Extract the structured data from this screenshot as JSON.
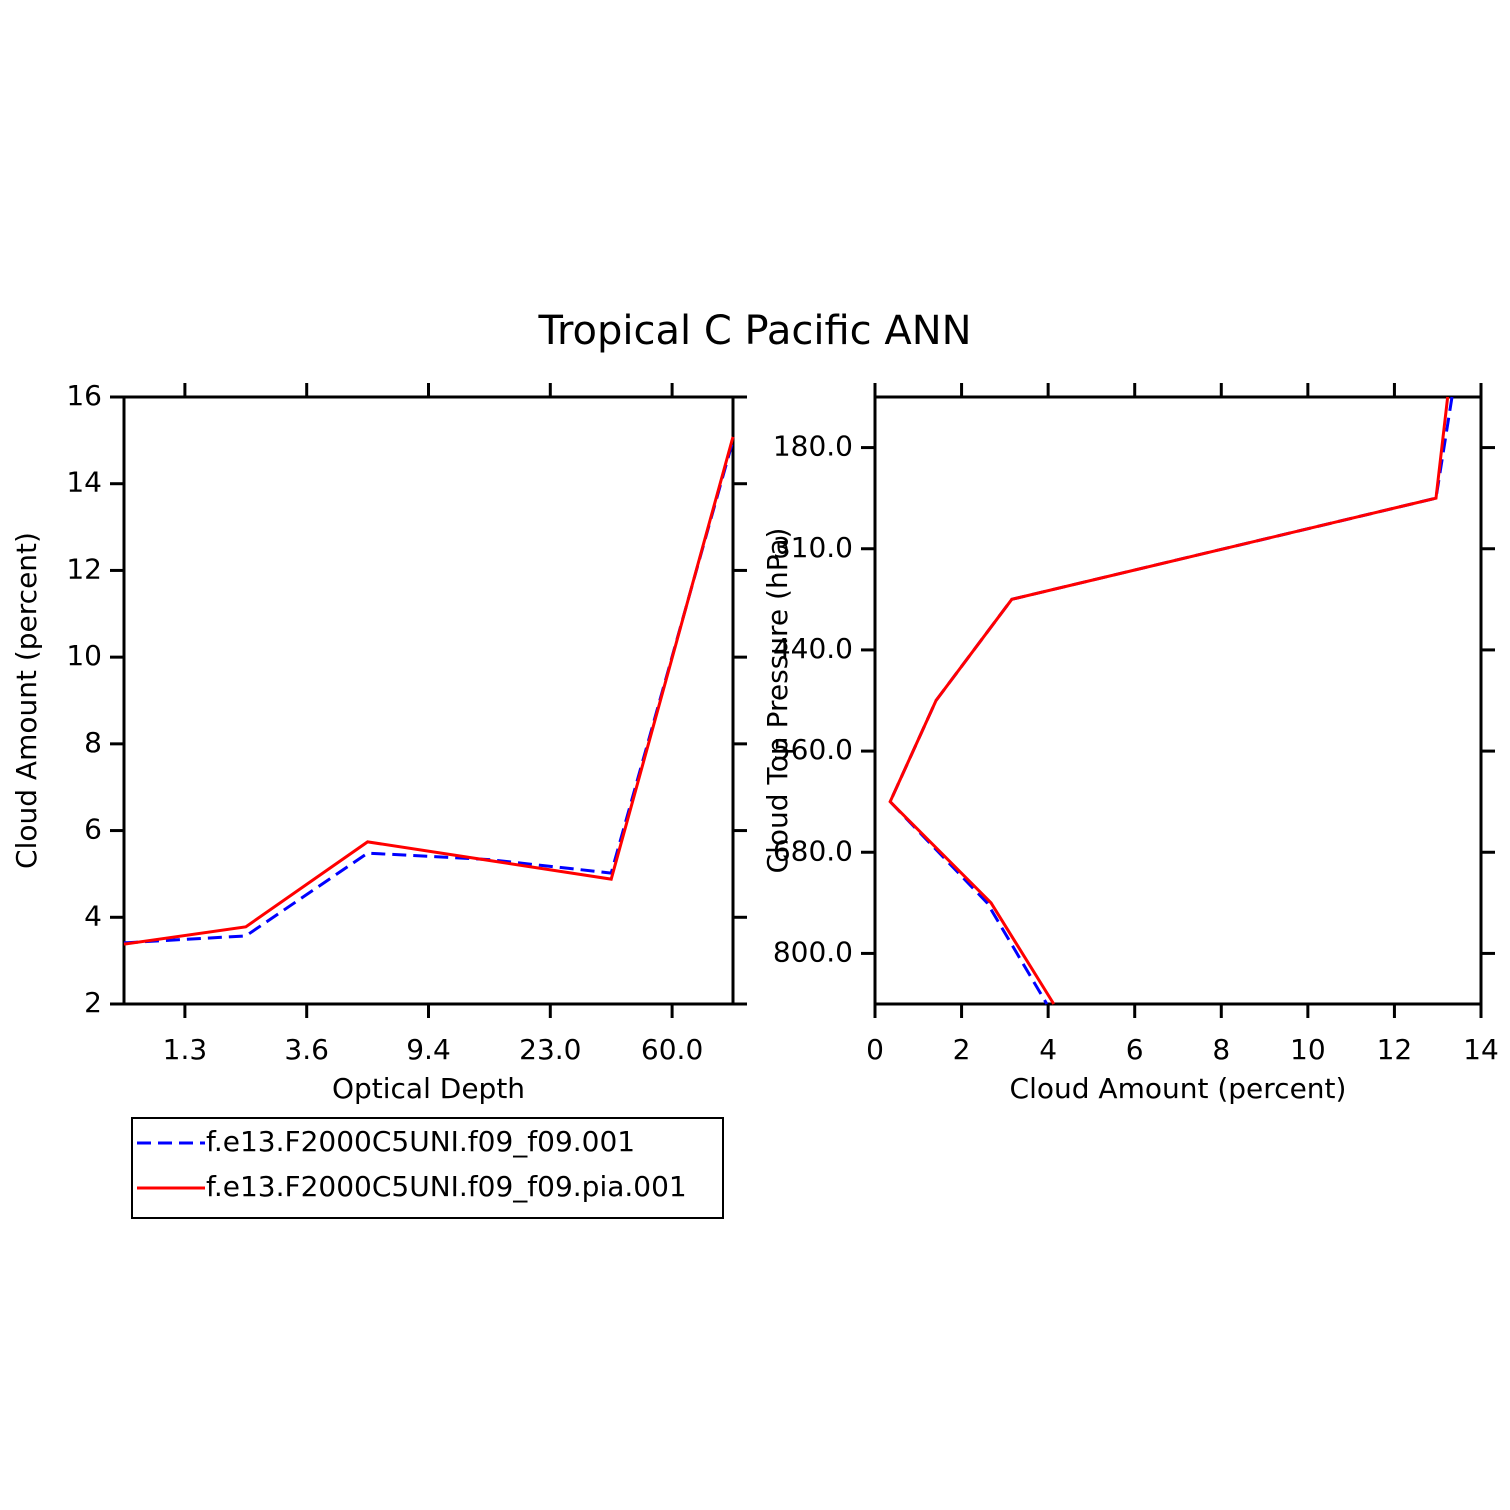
{
  "title": "Tropical C Pacific ANN",
  "chart_data": [
    {
      "type": "line",
      "x_label": "Optical Depth",
      "y_label": "Cloud Amount (percent)",
      "x": [
        0,
        1,
        2,
        3,
        4,
        5
      ],
      "xlim": [
        0,
        5
      ],
      "xticks": [
        {
          "value": 0.5,
          "label": "1.3"
        },
        {
          "value": 1.5,
          "label": "3.6"
        },
        {
          "value": 2.5,
          "label": "9.4"
        },
        {
          "value": 3.5,
          "label": "23.0"
        },
        {
          "value": 4.5,
          "label": "60.0"
        }
      ],
      "ylim": [
        2,
        16
      ],
      "yticks": [
        2,
        4,
        6,
        8,
        10,
        12,
        14,
        16
      ],
      "legend": "below",
      "series": [
        {
          "name": "f.e13.F2000C5UNI.f09_f09.001",
          "color": "#0000ff",
          "dash": true,
          "values": [
            3.41,
            3.57,
            5.48,
            5.33,
            5.02,
            15.0
          ]
        },
        {
          "name": "f.e13.F2000C5UNI.f09_f09.pia.001",
          "color": "#ff0000",
          "dash": false,
          "values": [
            3.38,
            3.78,
            5.74,
            5.31,
            4.88,
            15.08
          ]
        }
      ]
    },
    {
      "type": "line",
      "orientation": "horizontal",
      "x_label": "Cloud Amount (percent)",
      "y_label": "Cloud Top Pressure (hPa)",
      "y": [
        0,
        1,
        2,
        3,
        4,
        5,
        6
      ],
      "ylim": [
        0,
        6
      ],
      "y_reversed": true,
      "yticks": [
        {
          "value": 0.5,
          "label": "180.0"
        },
        {
          "value": 1.5,
          "label": "310.0"
        },
        {
          "value": 2.5,
          "label": "440.0"
        },
        {
          "value": 3.5,
          "label": "560.0"
        },
        {
          "value": 4.5,
          "label": "680.0"
        },
        {
          "value": 5.5,
          "label": "800.0"
        }
      ],
      "xlim": [
        0,
        14
      ],
      "xticks": [
        0,
        2,
        4,
        6,
        8,
        10,
        12,
        14
      ],
      "series": [
        {
          "color": "#0000ff",
          "dash": true,
          "values": [
            13.33,
            12.96,
            3.16,
            1.41,
            0.35,
            2.59,
            3.97
          ]
        },
        {
          "color": "#ff0000",
          "dash": false,
          "values": [
            13.23,
            12.96,
            3.16,
            1.41,
            0.35,
            2.68,
            4.13
          ]
        }
      ]
    }
  ]
}
